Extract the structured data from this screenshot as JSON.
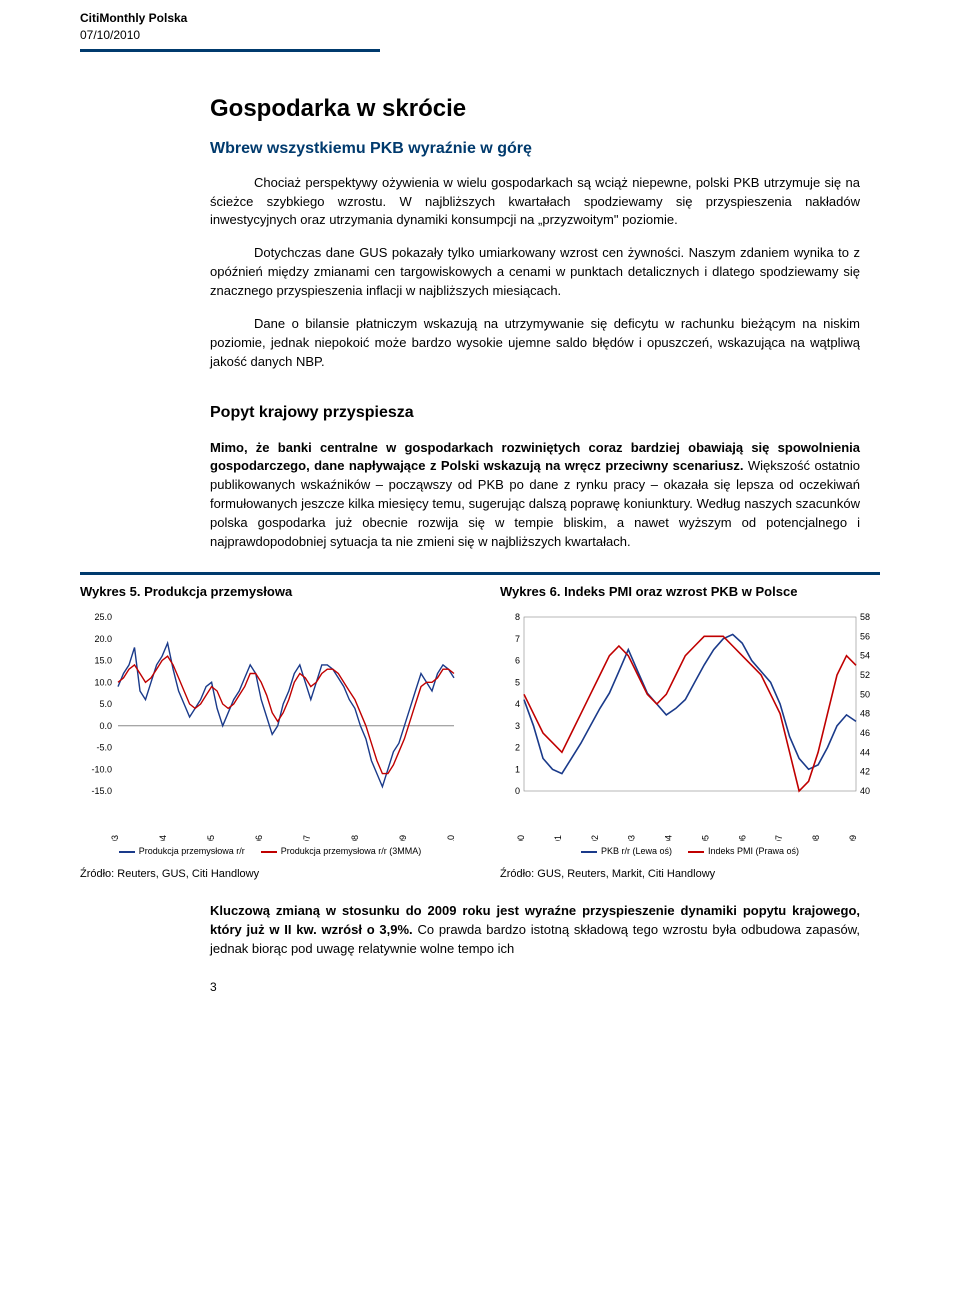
{
  "header": {
    "title": "CitiMonthly Polska",
    "date": "07/10/2010"
  },
  "main_title": "Gospodarka w skrócie",
  "subtitle": "Wbrew wszystkiemu PKB wyraźnie w górę",
  "para1": "Chociaż perspektywy ożywienia w wielu gospodarkach są wciąż niepewne, polski PKB utrzymuje się na ścieżce szybkiego wzrostu. W najbliższych kwartałach spodziewamy się przyspieszenia nakładów inwestycyjnych oraz utrzymania dynamiki konsumpcji na „przyzwoitym\" poziomie.",
  "para2": "Dotychczas dane GUS pokazały tylko umiarkowany wzrost cen żywności. Naszym zdaniem wynika to z opóźnień między zmianami cen targowiskowych a cenami w punktach detalicznych i dlatego spodziewamy się znacznego przyspieszenia inflacji w najbliższych miesiącach.",
  "para3": "Dane o bilansie płatniczym wskazują na utrzymywanie się deficytu w rachunku bieżącym na niskim poziomie, jednak niepokoić może bardzo wysokie ujemne saldo błędów i opuszczeń, wskazująca na wątpliwą jakość danych NBP.",
  "section2_title": "Popyt krajowy przyspiesza",
  "para4_bold": "Mimo, że banki centralne w gospodarkach rozwiniętych coraz bardziej obawiają się spowolnienia gospodarczego, dane napływające z Polski wskazują na wręcz przeciwny scenariusz.",
  "para4_rest": " Większość ostatnio publikowanych wskaźników – począwszy od PKB po dane z rynku pracy – okazała się lepsza od oczekiwań formułowanych jeszcze kilka miesięcy temu, sugerując dalszą poprawę koniunktury. Według naszych szacunków polska gospodarka już obecnie rozwija się w tempie bliskim, a nawet wyższym od potencjalnego i najprawdopodobniej sytuacja ta nie zmieni się w najbliższych kwartałach.",
  "chart5": {
    "title": "Wykres 5. Produkcja przemysłowa",
    "type": "line",
    "ylim": [
      -15,
      25
    ],
    "ytick_step": 5,
    "yticks": [
      "25.0",
      "20.0",
      "15.0",
      "10.0",
      "5.0",
      "0.0",
      "-5.0",
      "-10.0",
      "-15.0"
    ],
    "xticks": [
      "lip 03",
      "lip 04",
      "lip 05",
      "lip 06",
      "lip 07",
      "lip 08",
      "lip 09",
      "lip 10"
    ],
    "series": [
      {
        "name": "Produkcja przemysłowa r/r",
        "color": "#1a3a8a",
        "data": [
          9,
          12,
          14,
          18,
          8,
          6,
          10,
          14,
          16,
          19,
          13,
          8,
          5,
          2,
          4,
          6,
          9,
          10,
          4,
          0,
          3,
          6,
          8,
          11,
          14,
          12,
          6,
          2,
          -2,
          0,
          5,
          8,
          12,
          14,
          10,
          6,
          10,
          14,
          14,
          13,
          11,
          9,
          6,
          4,
          0,
          -3,
          -8,
          -11,
          -14,
          -10,
          -6,
          -4,
          0,
          4,
          8,
          12,
          10,
          8,
          12,
          14,
          13,
          11
        ]
      },
      {
        "name": "Produkcja przemysłowa r/r (3MMA)",
        "color": "#c00000",
        "data": [
          10,
          11,
          13,
          14,
          12,
          10,
          11,
          13,
          15,
          16,
          14,
          11,
          8,
          5,
          4,
          5,
          7,
          9,
          8,
          5,
          4,
          5,
          7,
          9,
          12,
          12,
          10,
          7,
          3,
          1,
          3,
          6,
          10,
          12,
          11,
          9,
          10,
          12,
          13,
          13,
          12,
          10,
          8,
          6,
          3,
          0,
          -4,
          -8,
          -11,
          -11,
          -9,
          -6,
          -3,
          1,
          5,
          9,
          10,
          10,
          11,
          13,
          13,
          12
        ]
      }
    ],
    "legend": [
      "Produkcja przemysłowa r/r",
      "Produkcja przemysłowa r/r (3MMA)"
    ],
    "source": "Źródło: Reuters, GUS, Citi Handlowy",
    "axis_color": "#888888",
    "grid_color": "#cccccc",
    "background_color": "#ffffff"
  },
  "chart6": {
    "title": "Wykres 6. Indeks PMI oraz wzrost PKB w Polsce",
    "type": "line-dual-axis",
    "ylim_left": [
      0,
      8
    ],
    "ytick_left_step": 1,
    "yticks_left": [
      "8",
      "7",
      "6",
      "5",
      "4",
      "3",
      "2",
      "1",
      "0"
    ],
    "ylim_right": [
      40,
      58
    ],
    "ytick_right_step": 2,
    "yticks_right": [
      "58",
      "56",
      "54",
      "52",
      "50",
      "48",
      "46",
      "44",
      "42",
      "40"
    ],
    "xticks": [
      "4q00",
      "4q01",
      "4q02",
      "4q03",
      "4q04",
      "4q05",
      "4q06",
      "4q07",
      "4q08",
      "4q09"
    ],
    "series": [
      {
        "name": "PKB r/r (Lewa oś)",
        "color": "#1a3a8a",
        "axis": "left",
        "data": [
          4.2,
          3.0,
          1.5,
          1.0,
          0.8,
          1.5,
          2.2,
          3.0,
          3.8,
          4.5,
          5.5,
          6.5,
          5.5,
          4.5,
          4.0,
          3.5,
          3.8,
          4.2,
          5.0,
          5.8,
          6.5,
          7.0,
          7.2,
          6.8,
          6.0,
          5.5,
          5.0,
          4.0,
          2.5,
          1.5,
          1.0,
          1.2,
          2.0,
          3.0,
          3.5,
          3.2
        ]
      },
      {
        "name": "Indeks PMI (Prawa oś)",
        "color": "#c00000",
        "axis": "right",
        "data": [
          50,
          48,
          46,
          45,
          44,
          46,
          48,
          50,
          52,
          54,
          55,
          54,
          52,
          50,
          49,
          50,
          52,
          54,
          55,
          56,
          56,
          56,
          55,
          54,
          53,
          52,
          50,
          48,
          44,
          40,
          41,
          44,
          48,
          52,
          54,
          53
        ]
      }
    ],
    "legend": [
      "PKB r/r (Lewa oś)",
      "Indeks PMI (Prawa oś)"
    ],
    "source": "Źródło: GUS, Reuters, Markit, Citi Handlowy",
    "axis_color": "#888888",
    "background_color": "#ffffff"
  },
  "footer_para_bold": "Kluczową zmianą w stosunku do 2009 roku jest wyraźne przyspieszenie dynamiki popytu krajowego, który już w II kw. wzrósł o 3,9%.",
  "footer_para_rest": " Co prawda bardzo istotną składową tego wzrostu była odbudowa zapasów, jednak biorąc pod uwagę relatywnie wolne tempo ich",
  "page_num": "3"
}
